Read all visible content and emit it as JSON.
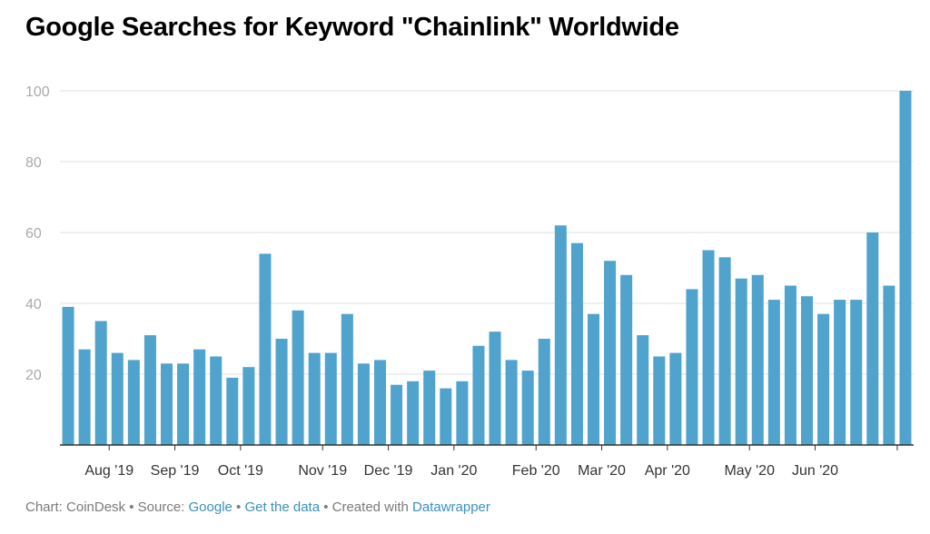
{
  "title": "Google Searches for Keyword \"Chainlink\" Worldwide",
  "footer": {
    "chart_label": "Chart: CoinDesk",
    "sep": " • ",
    "source_prefix": "Source: ",
    "source_link": "Google",
    "get_data_link": "Get the data",
    "created_prefix": "Created with ",
    "created_link": "Datawrapper"
  },
  "colors": {
    "bar": "#4fa3cc",
    "grid": "#e2e2e2",
    "axis": "#333333",
    "tick_text": "#aaaaaa",
    "xtick_text": "#333333",
    "link": "#3a90be"
  },
  "chart_data": {
    "type": "bar",
    "title": "Google Searches for Keyword \"Chainlink\" Worldwide",
    "values": [
      39,
      27,
      35,
      26,
      24,
      31,
      23,
      23,
      27,
      25,
      19,
      22,
      54,
      30,
      38,
      26,
      26,
      37,
      23,
      24,
      17,
      18,
      21,
      16,
      18,
      28,
      32,
      24,
      21,
      30,
      62,
      57,
      37,
      52,
      48,
      31,
      25,
      26,
      44,
      55,
      53,
      47,
      48,
      41,
      45,
      42,
      37,
      41,
      41,
      60,
      45,
      100
    ],
    "ylim": [
      0,
      100
    ],
    "yticks": [
      "20",
      "40",
      "60",
      "80",
      "100"
    ],
    "ytick_values": [
      20,
      40,
      60,
      80,
      100
    ],
    "xticks": [
      {
        "label": "Aug '19",
        "after_bar": 2
      },
      {
        "label": "Sep '19",
        "after_bar": 6
      },
      {
        "label": "Oct '19",
        "after_bar": 10
      },
      {
        "label": "Nov '19",
        "after_bar": 15
      },
      {
        "label": "Dec '19",
        "after_bar": 19
      },
      {
        "label": "Jan '20",
        "after_bar": 23
      },
      {
        "label": "Feb '20",
        "after_bar": 28
      },
      {
        "label": "Mar '20",
        "after_bar": 32
      },
      {
        "label": "Apr '20",
        "after_bar": 36
      },
      {
        "label": "May '20",
        "after_bar": 41
      },
      {
        "label": "Jun '20",
        "after_bar": 45
      }
    ],
    "final_tick_after_bar": 50,
    "grid": true,
    "xlabel": "",
    "ylabel": ""
  }
}
